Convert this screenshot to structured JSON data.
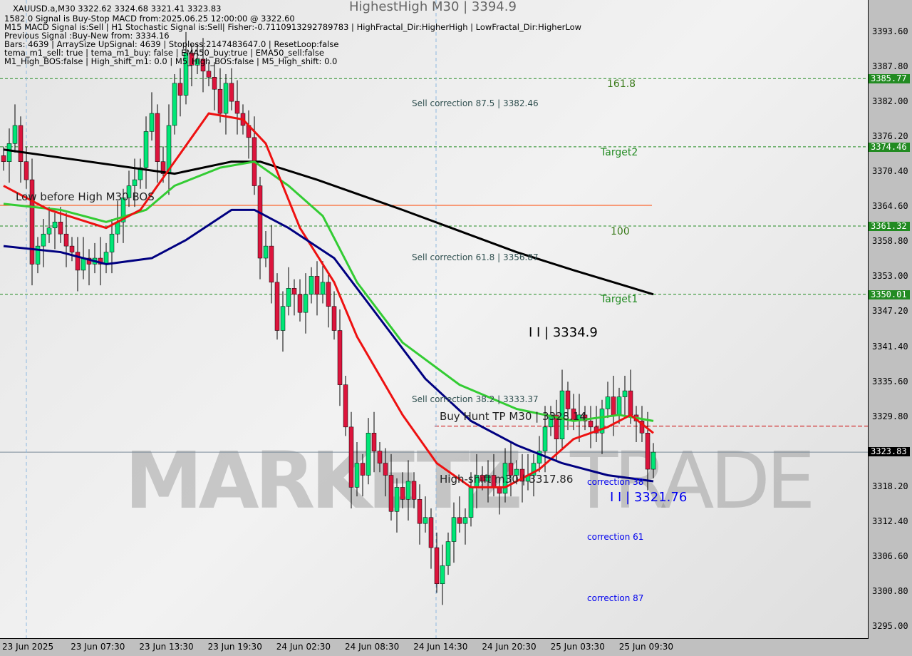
{
  "header": {
    "lines": [
      "XAUUSD.a,M30  3322.62 3324.68 3321.41 3323.83",
      "1582 0 Signal is Buy-Stop MACD from:2025.06.25 12:00:00 @ 3322.60",
      "M15 MACD Signal is:Sell | H1 Stochastic Signal is:Sell| Fisher:-0.7110913292789783 | HighFractal_Dir:HigherHigh | LowFractal_Dir:HigherLow",
      "Previous Signal :Buy-New from: 3334.16",
      "Bars: 4639 | ArraySize UpSignal: 4639 | Stoploss:2147483647.0 | ResetLoop:false",
      "tema_m1_sell: true | tema_m1_buy: false | EMA50_buy:true | EMA50_sell:false",
      "M1_High_BOS:false | High_shift_m1: 0.0 | M5_High_BOS:false | M5_High_shift: 0.0"
    ],
    "overlay": "HighestHigh   M30 | 3394.9"
  },
  "watermark": {
    "left": "MARKETZ",
    "right": "TRADE"
  },
  "annotations": {
    "low_before_high": "Low before High   M30 BOS",
    "sell_875": "Sell correction 87.5 | 3382.46",
    "sell_618": "Sell correction 61.8 | 3356.87",
    "sell_382": "Sell correction 38.2 | 3333.37",
    "buy_hunt": "Buy Hunt TP M30 | 3328.14",
    "high_shift": "High-shift m30 | 3317.86",
    "top_level": "I I | 3334.9",
    "bottom_level": "I I | 3321.76",
    "corr38": "correction 38",
    "corr61": "correction 61",
    "corr87": "correction 87",
    "fib1618": "161.8",
    "target2": "Target2",
    "fib100": "100",
    "target1": "Target1"
  },
  "chart_data": {
    "type": "candlestick",
    "symbol": "XAUUSD.a",
    "timeframe": "M30",
    "ylim": [
      3292,
      3398
    ],
    "y_ticks": [
      "3393.60",
      "3387.80",
      "3382.00",
      "3376.20",
      "3370.40",
      "3364.60",
      "3358.80",
      "3353.00",
      "3347.20",
      "3341.40",
      "3335.60",
      "3329.80",
      "3323.83",
      "3318.20",
      "3312.40",
      "3306.60",
      "3300.80",
      "3295.00"
    ],
    "x_ticks": [
      "23 Jun 2025",
      "23 Jun 07:30",
      "23 Jun 13:30",
      "23 Jun 19:30",
      "24 Jun 02:30",
      "24 Jun 08:30",
      "24 Jun 14:30",
      "24 Jun 20:30",
      "25 Jun 03:30",
      "25 Jun 09:30"
    ],
    "close": [
      3372,
      3375,
      3378,
      3372,
      3369,
      3355,
      3358,
      3360,
      3361,
      3362,
      3360,
      3358,
      3357,
      3354,
      3356,
      3355,
      3356,
      3355,
      3357,
      3360,
      3362,
      3366,
      3368,
      3369,
      3371,
      3377,
      3380,
      3372,
      3370,
      3378,
      3385,
      3383,
      3390,
      3388,
      3389,
      3387,
      3386,
      3384,
      3380,
      3385,
      3382,
      3380,
      3378,
      3376,
      3368,
      3356,
      3358,
      3352,
      3344,
      3348,
      3351,
      3350,
      3347,
      3350,
      3353,
      3350,
      3352,
      3348,
      3344,
      3335,
      3328,
      3318,
      3322,
      3320,
      3327,
      3324,
      3322,
      3320,
      3314,
      3318,
      3316,
      3319,
      3316,
      3312,
      3313,
      3308,
      3302,
      3305,
      3309,
      3313,
      3312,
      3313,
      3318,
      3320,
      3319,
      3320,
      3318,
      3317,
      3322,
      3320,
      3321,
      3319,
      3320,
      3322,
      3324,
      3328,
      3330,
      3326,
      3334,
      3331,
      3329,
      3330,
      3329,
      3328,
      3327,
      3331,
      3333,
      3330,
      3333,
      3334,
      3330,
      3329,
      3327,
      3321,
      3323.83
    ],
    "moving_averages": [
      {
        "color": "#000000",
        "points": [
          [
            0,
            3374
          ],
          [
            15,
            3372
          ],
          [
            30,
            3370
          ],
          [
            40,
            3372
          ],
          [
            45,
            3372
          ],
          [
            55,
            3369
          ],
          [
            70,
            3364
          ],
          [
            90,
            3357
          ],
          [
            100,
            3354
          ],
          [
            114,
            3350
          ]
        ]
      },
      {
        "color": "#33cc33",
        "points": [
          [
            0,
            3365
          ],
          [
            10,
            3364
          ],
          [
            18,
            3362
          ],
          [
            25,
            3364
          ],
          [
            30,
            3368
          ],
          [
            38,
            3371
          ],
          [
            44,
            3372
          ],
          [
            50,
            3368
          ],
          [
            56,
            3363
          ],
          [
            62,
            3352
          ],
          [
            70,
            3342
          ],
          [
            80,
            3335
          ],
          [
            90,
            3331
          ],
          [
            100,
            3329
          ],
          [
            108,
            3330
          ],
          [
            114,
            3329
          ]
        ]
      },
      {
        "color": "#ee1111",
        "points": [
          [
            0,
            3368
          ],
          [
            8,
            3364
          ],
          [
            18,
            3361
          ],
          [
            24,
            3364
          ],
          [
            30,
            3372
          ],
          [
            36,
            3380
          ],
          [
            42,
            3379
          ],
          [
            46,
            3375
          ],
          [
            52,
            3361
          ],
          [
            58,
            3352
          ],
          [
            62,
            3343
          ],
          [
            70,
            3330
          ],
          [
            76,
            3322
          ],
          [
            82,
            3318
          ],
          [
            88,
            3318
          ],
          [
            94,
            3321
          ],
          [
            100,
            3326
          ],
          [
            106,
            3328
          ],
          [
            110,
            3330
          ],
          [
            114,
            3327
          ]
        ]
      },
      {
        "color": "#000080",
        "points": [
          [
            0,
            3358
          ],
          [
            10,
            3357
          ],
          [
            18,
            3355
          ],
          [
            26,
            3356
          ],
          [
            32,
            3359
          ],
          [
            40,
            3364
          ],
          [
            44,
            3364
          ],
          [
            50,
            3361
          ],
          [
            58,
            3356
          ],
          [
            66,
            3346
          ],
          [
            74,
            3336
          ],
          [
            82,
            3329
          ],
          [
            90,
            3325
          ],
          [
            98,
            3322
          ],
          [
            106,
            3320
          ],
          [
            114,
            3319
          ]
        ]
      }
    ],
    "levels": [
      {
        "price": 3385.77,
        "label": "3385.77",
        "color": "#228b22"
      },
      {
        "price": 3374.46,
        "label": "3374.46",
        "color": "#228b22"
      },
      {
        "price": 3361.32,
        "label": "3361.32",
        "color": "#228b22"
      },
      {
        "price": 3350.01,
        "label": "3350.01",
        "color": "#228b22"
      }
    ],
    "bos_line": 3364.75,
    "buy_hunt_line": 3328.14,
    "current_price": "3323.83",
    "up_color": "#00e676",
    "down_color": "#dc143c"
  }
}
